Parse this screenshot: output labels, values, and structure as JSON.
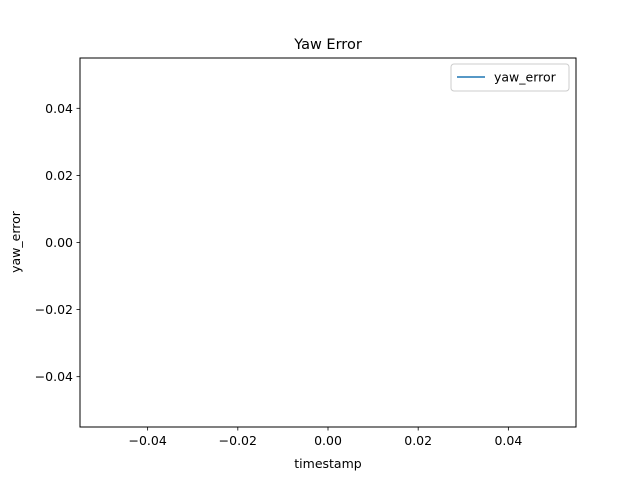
{
  "chart_data": {
    "type": "line",
    "title": "Yaw Error",
    "xlabel": "timestamp",
    "ylabel": "yaw_error",
    "xlim": [
      -0.055,
      0.055
    ],
    "ylim": [
      -0.055,
      0.055
    ],
    "x_ticks": [
      -0.04,
      -0.02,
      0.0,
      0.02,
      0.04
    ],
    "x_tick_labels": [
      "−0.04",
      "−0.02",
      "0.00",
      "0.02",
      "0.04"
    ],
    "y_ticks": [
      -0.04,
      -0.02,
      0.0,
      0.02,
      0.04
    ],
    "y_tick_labels": [
      "−0.04",
      "−0.02",
      "0.00",
      "0.02",
      "0.04"
    ],
    "grid": false,
    "legend": {
      "position": "upper right"
    },
    "series": [
      {
        "name": "yaw_error",
        "color": "#1f77b4",
        "x": [],
        "y": []
      }
    ]
  }
}
